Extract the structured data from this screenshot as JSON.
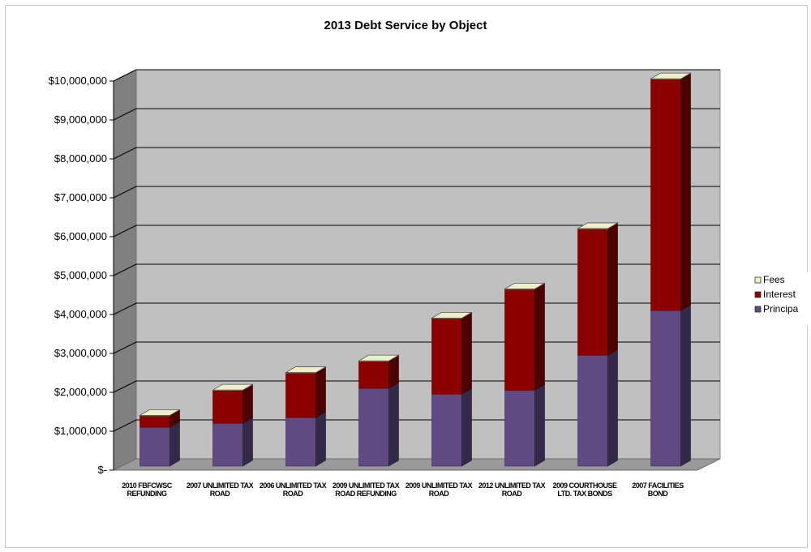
{
  "chart_data": {
    "type": "bar",
    "stacked": true,
    "three_d": true,
    "title": "2013 Debt Service by Object",
    "categories": [
      [
        "2010 FBFCWSC",
        "REFUNDING"
      ],
      [
        "2007 UNLIMITED TAX",
        "ROAD"
      ],
      [
        "2006 UNLIMITED TAX",
        "ROAD"
      ],
      [
        "2009 UNLIMITED TAX",
        "ROAD REFUNDING"
      ],
      [
        "2009 UNLIMITED TAX",
        "ROAD"
      ],
      [
        "2012 UNLIMITED TAX",
        "ROAD"
      ],
      [
        "2009 COURTHOUSE",
        "LTD. TAX BONDS"
      ],
      [
        "2007 FACILITIES",
        "BOND"
      ]
    ],
    "series": [
      {
        "name": "Principal",
        "color": "#5f4b82",
        "values": [
          1000000,
          1100000,
          1250000,
          2000000,
          1850000,
          1950000,
          2850000,
          4000000
        ]
      },
      {
        "name": "Interest",
        "color": "#8b0000",
        "values": [
          300000,
          850000,
          1150000,
          700000,
          1950000,
          2600000,
          3250000,
          5950000
        ]
      },
      {
        "name": "Fees",
        "color": "#eeeec8",
        "values": [
          5000,
          5000,
          5000,
          5000,
          5000,
          5000,
          5000,
          5000
        ]
      }
    ],
    "legend_labels": [
      "Fees",
      "Interest",
      "Principa"
    ],
    "legend_colors": [
      "#eeeec8",
      "#8b0000",
      "#5f4b82"
    ],
    "yticks": [
      "$-",
      "$1,000,000",
      "$2,000,000",
      "$3,000,000",
      "$4,000,000",
      "$5,000,000",
      "$6,000,000",
      "$7,000,000",
      "$8,000,000",
      "$9,000,000",
      "$10,000,000"
    ],
    "ylim": [
      0,
      10000000
    ],
    "grid": true,
    "legend_position": "right",
    "wall_color": "#c0c0c0",
    "side_wall_color": "#808080",
    "floor_color": "#9a9a9a"
  }
}
